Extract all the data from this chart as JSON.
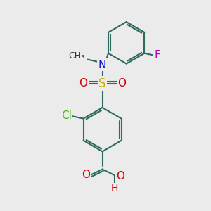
{
  "background_color": "#ebebeb",
  "bond_color": "#2d6b5e",
  "bond_width": 1.5,
  "atoms": {
    "N": {
      "color": "#1414cc"
    },
    "S": {
      "color": "#ccaa00"
    },
    "O": {
      "color": "#cc0000"
    },
    "Cl": {
      "color": "#44bb00"
    },
    "F": {
      "color": "#bb00bb"
    },
    "H": {
      "color": "#cc0000"
    }
  },
  "fontsize": 10
}
